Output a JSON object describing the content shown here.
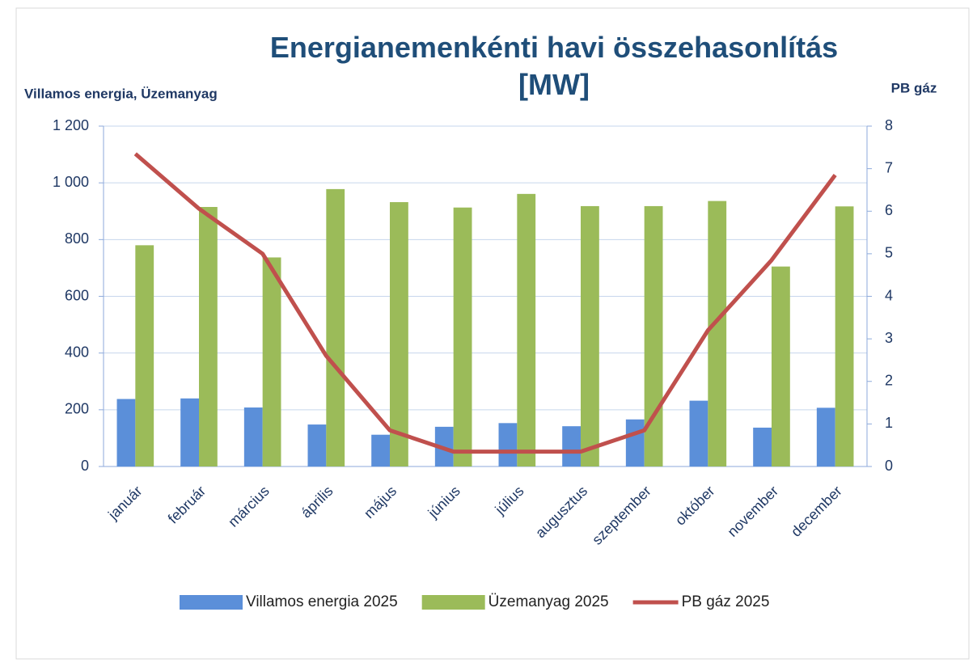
{
  "chart_data": {
    "type": "bar-line",
    "title": "Energianemenkénti havi összehasonlítás [MW]",
    "y_label": "Villamos energia, Üzemanyag",
    "y2_label": "PB gáz",
    "categories": [
      "január",
      "február",
      "március",
      "április",
      "május",
      "június",
      "július",
      "augusztus",
      "szeptember",
      "október",
      "november",
      "december"
    ],
    "series": [
      {
        "name": "Villamos energia 2025",
        "type": "bar",
        "color": "#5b8fd9",
        "values": [
          238,
          240,
          208,
          148,
          112,
          140,
          153,
          142,
          166,
          232,
          137,
          207
        ]
      },
      {
        "name": "Üzemanyag 2025",
        "type": "bar",
        "color": "#9bbb59",
        "values": [
          780,
          915,
          737,
          978,
          932,
          913,
          961,
          918,
          918,
          936,
          705,
          917
        ]
      },
      {
        "name": "PB gáz 2025",
        "type": "line",
        "axis": "y2",
        "color": "#c0504d",
        "values": [
          7.35,
          6.06,
          5.0,
          2.6,
          0.85,
          0.35,
          0.35,
          0.35,
          0.85,
          3.2,
          4.85,
          6.85
        ]
      }
    ],
    "ylim": [
      0,
      1200
    ],
    "yticks": [
      0,
      200,
      400,
      600,
      800,
      {
        "value": 1000,
        "label": "1 000"
      },
      {
        "value": 1200,
        "label": "1 200"
      }
    ],
    "y2lim": [
      0,
      8
    ],
    "y2ticks": [
      0,
      1,
      2,
      3,
      4,
      5,
      6,
      7,
      8
    ],
    "grid": true,
    "legend": "bottom"
  }
}
